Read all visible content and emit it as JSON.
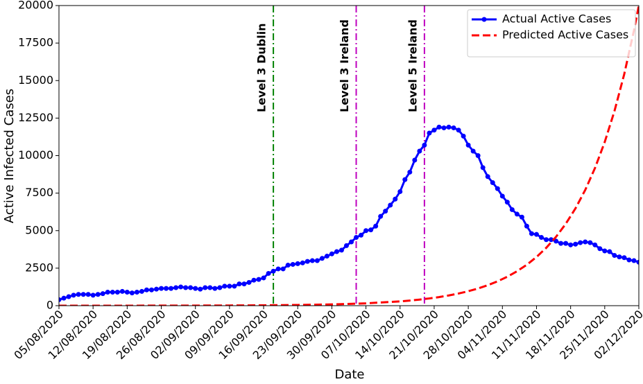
{
  "chart_data": {
    "type": "line",
    "xlabel": "Date",
    "ylabel": "Active Infected Cases",
    "x": [
      "05/08/2020",
      "06/08/2020",
      "07/08/2020",
      "08/08/2020",
      "09/08/2020",
      "10/08/2020",
      "11/08/2020",
      "12/08/2020",
      "13/08/2020",
      "14/08/2020",
      "15/08/2020",
      "16/08/2020",
      "17/08/2020",
      "18/08/2020",
      "19/08/2020",
      "20/08/2020",
      "21/08/2020",
      "22/08/2020",
      "23/08/2020",
      "24/08/2020",
      "25/08/2020",
      "26/08/2020",
      "27/08/2020",
      "28/08/2020",
      "29/08/2020",
      "30/08/2020",
      "31/08/2020",
      "01/09/2020",
      "02/09/2020",
      "03/09/2020",
      "04/09/2020",
      "05/09/2020",
      "06/09/2020",
      "07/09/2020",
      "08/09/2020",
      "09/09/2020",
      "10/09/2020",
      "11/09/2020",
      "12/09/2020",
      "13/09/2020",
      "14/09/2020",
      "15/09/2020",
      "16/09/2020",
      "17/09/2020",
      "18/09/2020",
      "19/09/2020",
      "20/09/2020",
      "21/09/2020",
      "22/09/2020",
      "23/09/2020",
      "24/09/2020",
      "25/09/2020",
      "26/09/2020",
      "27/09/2020",
      "28/09/2020",
      "29/09/2020",
      "30/09/2020",
      "01/10/2020",
      "02/10/2020",
      "03/10/2020",
      "04/10/2020",
      "05/10/2020",
      "06/10/2020",
      "07/10/2020",
      "08/10/2020",
      "09/10/2020",
      "10/10/2020",
      "11/10/2020",
      "12/10/2020",
      "13/10/2020",
      "14/10/2020",
      "15/10/2020",
      "16/10/2020",
      "17/10/2020",
      "18/10/2020",
      "19/10/2020",
      "20/10/2020",
      "21/10/2020",
      "22/10/2020",
      "23/10/2020",
      "24/10/2020",
      "25/10/2020",
      "26/10/2020",
      "27/10/2020",
      "28/10/2020",
      "29/10/2020",
      "30/10/2020",
      "31/10/2020",
      "01/11/2020",
      "02/11/2020",
      "03/11/2020",
      "04/11/2020",
      "05/11/2020",
      "06/11/2020",
      "07/11/2020",
      "08/11/2020",
      "09/11/2020",
      "10/11/2020",
      "11/11/2020",
      "12/11/2020",
      "13/11/2020",
      "14/11/2020",
      "15/11/2020",
      "16/11/2020",
      "17/11/2020",
      "18/11/2020",
      "19/11/2020",
      "20/11/2020",
      "21/11/2020",
      "22/11/2020",
      "23/11/2020",
      "24/11/2020",
      "25/11/2020",
      "26/11/2020",
      "27/11/2020",
      "28/11/2020",
      "29/11/2020",
      "30/11/2020",
      "01/12/2020",
      "02/12/2020"
    ],
    "series": [
      {
        "name": "Actual Active Cases",
        "color": "#0000ff",
        "markers": true,
        "values": [
          400,
          500,
          600,
          700,
          750,
          750,
          750,
          700,
          750,
          800,
          900,
          900,
          900,
          950,
          900,
          850,
          900,
          950,
          1050,
          1050,
          1100,
          1150,
          1150,
          1150,
          1200,
          1250,
          1200,
          1200,
          1150,
          1100,
          1200,
          1200,
          1150,
          1200,
          1300,
          1300,
          1300,
          1450,
          1450,
          1550,
          1700,
          1750,
          1850,
          2150,
          2300,
          2450,
          2450,
          2700,
          2750,
          2800,
          2850,
          2950,
          3000,
          3000,
          3150,
          3300,
          3450,
          3600,
          3700,
          4000,
          4250,
          4550,
          4700,
          5000,
          5050,
          5300,
          5950,
          6300,
          6700,
          7100,
          7600,
          8400,
          8900,
          9700,
          10300,
          10700,
          11500,
          11700,
          11900,
          11850,
          11900,
          11850,
          11700,
          11300,
          10700,
          10300,
          10000,
          9200,
          8600,
          8200,
          7800,
          7300,
          6900,
          6400,
          6100,
          5900,
          5300,
          4800,
          4750,
          4550,
          4400,
          4400,
          4300,
          4150,
          4150,
          4050,
          4100,
          4200,
          4250,
          4200,
          4050,
          3800,
          3650,
          3600,
          3350,
          3250,
          3200,
          3050,
          3000,
          2900
        ]
      },
      {
        "name": "Predicted Active Cases",
        "color": "#ff0000",
        "dashed": true,
        "x": [
          "05/08/2020",
          "12/08/2020",
          "19/08/2020",
          "26/08/2020",
          "02/09/2020",
          "09/09/2020",
          "16/09/2020",
          "23/09/2020",
          "30/09/2020",
          "07/10/2020",
          "14/10/2020",
          "16/10/2020",
          "18/10/2020",
          "20/10/2020",
          "22/10/2020",
          "24/10/2020",
          "26/10/2020",
          "28/10/2020",
          "30/10/2020",
          "01/11/2020",
          "03/11/2020",
          "05/11/2020",
          "07/11/2020",
          "09/11/2020",
          "11/11/2020",
          "13/11/2020",
          "15/11/2020",
          "17/11/2020",
          "19/11/2020",
          "21/11/2020",
          "23/11/2020",
          "25/11/2020",
          "27/11/2020",
          "29/11/2020",
          "01/12/2020",
          "02/12/2020"
        ],
        "values": [
          1,
          1,
          2,
          4,
          8,
          14,
          25,
          47,
          85,
          156,
          287,
          341,
          405,
          482,
          573,
          682,
          811,
          964,
          1146,
          1363,
          1621,
          1928,
          2293,
          2726,
          3242,
          3856,
          4585,
          5453,
          6484,
          7711,
          9170,
          10905,
          12968,
          15422,
          18340,
          20000
        ]
      }
    ],
    "vlines": [
      {
        "x": "18/09/2020",
        "label": "Level 3 Dublin",
        "color": "#008000"
      },
      {
        "x": "05/10/2020",
        "label": "Level 3 Ireland",
        "color": "#bf00bf"
      },
      {
        "x": "19/10/2020",
        "label": "Level 5 Ireland",
        "color": "#bf00bf"
      }
    ],
    "xlim": [
      "05/08/2020",
      "02/12/2020"
    ],
    "xticks": [
      "05/08/2020",
      "12/08/2020",
      "19/08/2020",
      "26/08/2020",
      "02/09/2020",
      "09/09/2020",
      "16/09/2020",
      "23/09/2020",
      "30/09/2020",
      "07/10/2020",
      "14/10/2020",
      "21/10/2020",
      "28/10/2020",
      "04/11/2020",
      "11/11/2020",
      "18/11/2020",
      "25/11/2020",
      "02/12/2020"
    ],
    "ylim": [
      0,
      20000
    ],
    "yticks": [
      0,
      2500,
      5000,
      7500,
      10000,
      12500,
      15000,
      17500,
      20000
    ],
    "legend": "upper right"
  }
}
